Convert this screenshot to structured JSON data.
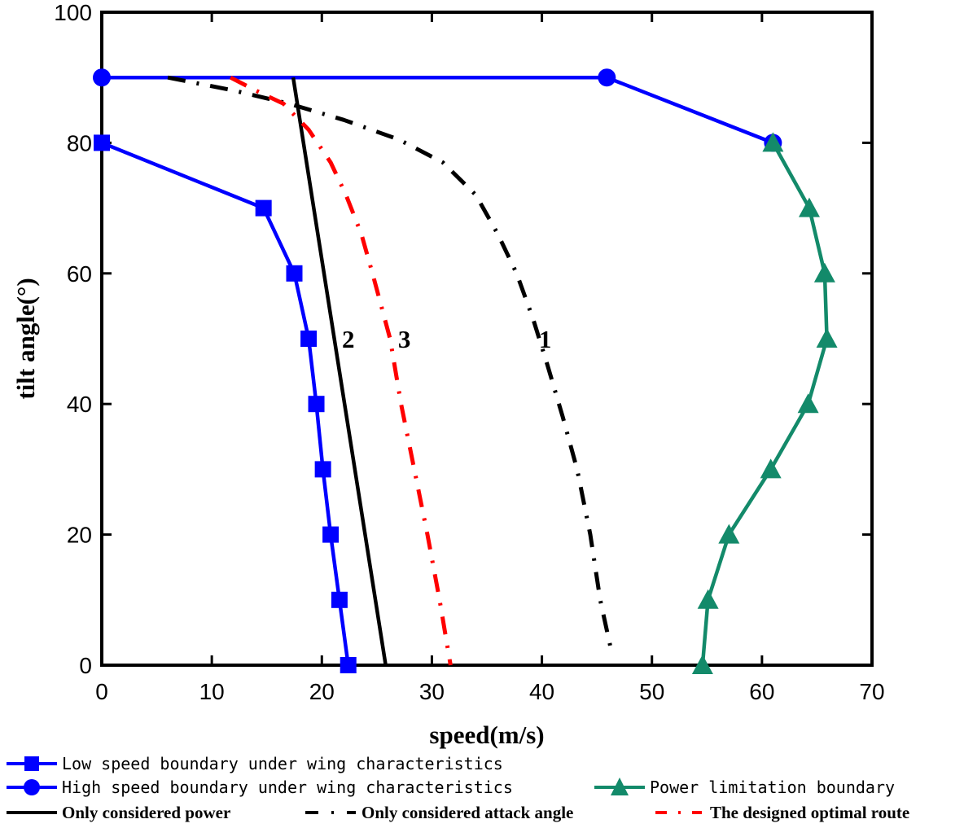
{
  "chart_data": {
    "type": "line",
    "xlabel": "speed(m/s)",
    "ylabel": "tilt angle(°)",
    "xlim": [
      0,
      70
    ],
    "ylim": [
      0,
      100
    ],
    "xticks": [
      0,
      10,
      20,
      30,
      40,
      50,
      60,
      70
    ],
    "yticks": [
      0,
      20,
      40,
      60,
      80,
      100
    ],
    "grid": false,
    "legend_position": "bottom",
    "series": [
      {
        "name": "Low speed boundary under wing characteristics",
        "color": "#0000ff",
        "line_style": "solid",
        "marker": "square",
        "points": [
          [
            0,
            80
          ],
          [
            14.7,
            70
          ],
          [
            17.5,
            60
          ],
          [
            18.8,
            50
          ],
          [
            19.5,
            40
          ],
          [
            20.1,
            30
          ],
          [
            20.8,
            20
          ],
          [
            21.6,
            10
          ],
          [
            22.4,
            0
          ]
        ]
      },
      {
        "name": "High speed boundary under wing characteristics",
        "color": "#0000ff",
        "line_style": "solid",
        "marker": "circle",
        "points": [
          [
            0,
            90
          ],
          [
            45.9,
            90
          ],
          [
            61,
            80
          ]
        ]
      },
      {
        "name": "Power limitation boundary",
        "color": "#138a6a",
        "line_style": "solid",
        "marker": "triangle",
        "points": [
          [
            61,
            80
          ],
          [
            64.3,
            70
          ],
          [
            65.7,
            60
          ],
          [
            65.9,
            50
          ],
          [
            64.2,
            40
          ],
          [
            60.8,
            30
          ],
          [
            57,
            20
          ],
          [
            55.1,
            10
          ],
          [
            54.6,
            0
          ]
        ]
      },
      {
        "name": "Only considered power",
        "color": "#000000",
        "line_style": "solid",
        "marker": "none",
        "points": [
          [
            17.4,
            90
          ],
          [
            25.8,
            0
          ]
        ]
      },
      {
        "name": "Only considered attack angle",
        "color": "#000000",
        "line_style": "dash-dot",
        "marker": "none",
        "points": [
          [
            6,
            90
          ],
          [
            12,
            88
          ],
          [
            17,
            86
          ],
          [
            22,
            83.5
          ],
          [
            27,
            80.5
          ],
          [
            31,
            77
          ],
          [
            34,
            72
          ],
          [
            36,
            66
          ],
          [
            37.7,
            60
          ],
          [
            39.2,
            53
          ],
          [
            40.5,
            46
          ],
          [
            41.9,
            38
          ],
          [
            43.2,
            30
          ],
          [
            44.4,
            20
          ],
          [
            45.3,
            10
          ],
          [
            46.2,
            3
          ]
        ]
      },
      {
        "name": "The designed optimal route",
        "color": "#ff0000",
        "line_style": "dash-dot",
        "marker": "none",
        "points": [
          [
            11.7,
            90
          ],
          [
            14,
            88
          ],
          [
            16.5,
            86
          ],
          [
            18.8,
            82
          ],
          [
            20.8,
            77
          ],
          [
            22.2,
            72
          ],
          [
            23.6,
            66
          ],
          [
            24.6,
            60
          ],
          [
            25.4,
            55
          ],
          [
            26.2,
            50
          ],
          [
            27.2,
            40
          ],
          [
            28.4,
            30
          ],
          [
            29.6,
            20
          ],
          [
            30.7,
            10
          ],
          [
            31.7,
            0
          ]
        ]
      }
    ],
    "annotations": [
      {
        "text": "2",
        "x": 22.4,
        "y": 50
      },
      {
        "text": "3",
        "x": 27.5,
        "y": 50
      },
      {
        "text": "1",
        "x": 40.3,
        "y": 50
      }
    ]
  }
}
